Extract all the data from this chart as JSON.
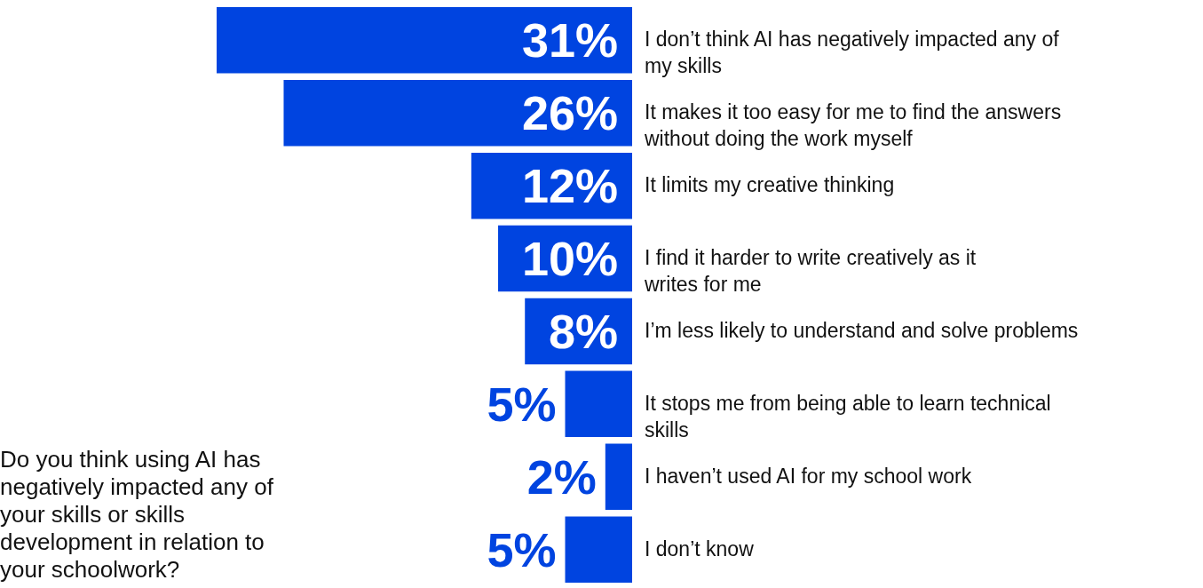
{
  "chart_data": {
    "type": "bar",
    "orientation": "horizontal",
    "title": "Do you think using AI has negatively impacted any of your skills or skills development in relation to your schoolwork?",
    "categories": [
      "I don’t think AI has negatively impacted any of my skills",
      "It makes it too easy for me to find the answers without doing the work myself",
      "It limits my creative thinking",
      "I find it harder to write creatively as it writes for me",
      "I’m less likely to understand and solve problems",
      "It stops me from being able to learn technical skills",
      "I haven’t used AI for my school work",
      "I don’t know"
    ],
    "values": [
      31,
      26,
      12,
      10,
      8,
      5,
      2,
      5
    ],
    "value_labels": [
      "31%",
      "26%",
      "12%",
      "10%",
      "8%",
      "5%",
      "2%",
      "5%"
    ],
    "color": "#0044e0"
  }
}
